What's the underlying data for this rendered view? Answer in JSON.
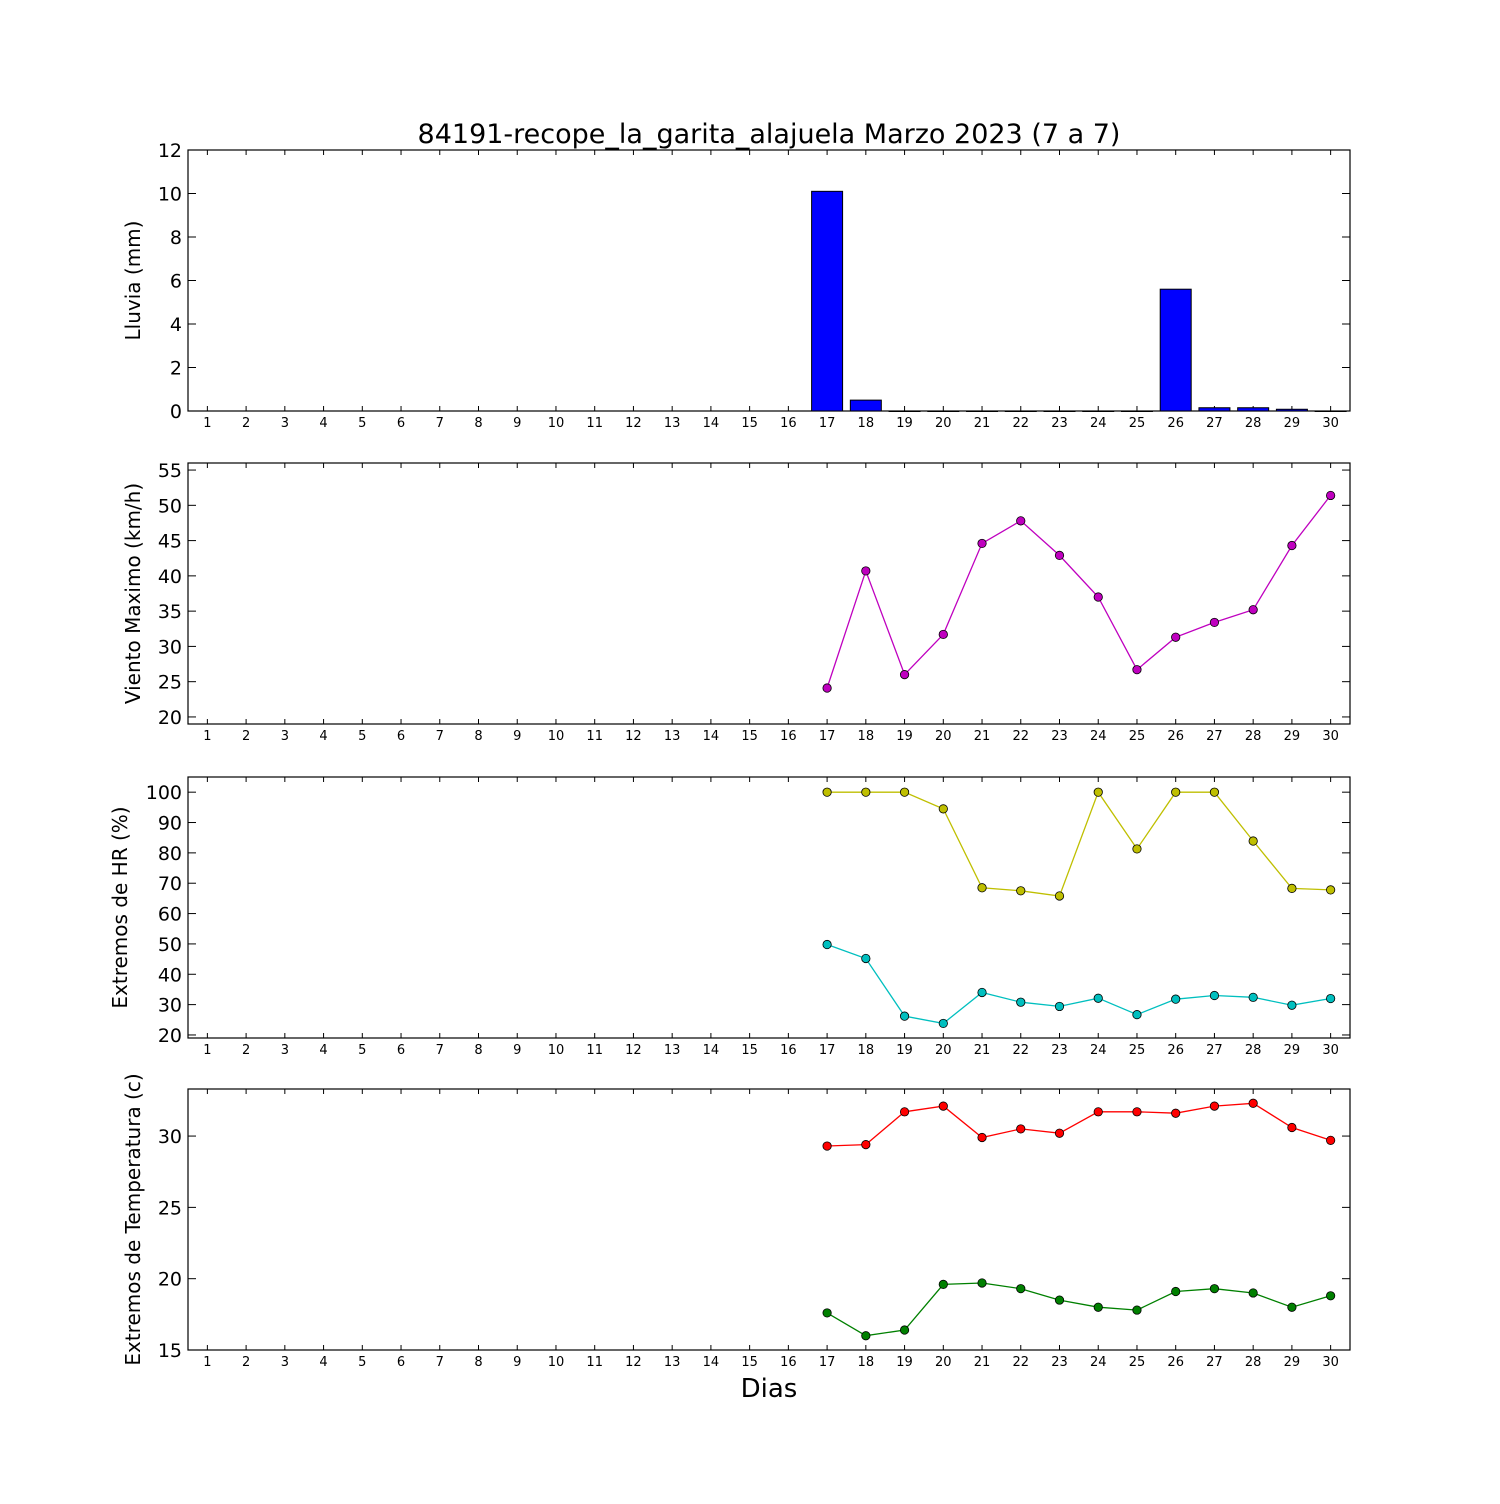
{
  "title": "84191-recope_la_garita_alajuela Marzo 2023  (7 a 7)",
  "xlabel": "Dias",
  "chart_data": [
    {
      "type": "bar",
      "ylabel": "Lluvia (mm)",
      "ylim": [
        0,
        12
      ],
      "yticks": [
        0,
        2,
        4,
        6,
        8,
        10,
        12
      ],
      "x_ticks": [
        1,
        2,
        3,
        4,
        5,
        6,
        7,
        8,
        9,
        10,
        11,
        12,
        13,
        14,
        15,
        16,
        17,
        18,
        19,
        20,
        21,
        22,
        23,
        24,
        25,
        26,
        27,
        28,
        29,
        30
      ],
      "xlim": [
        0.5,
        30.5
      ],
      "series": [
        {
          "color": "#0000ff",
          "x": [
            17,
            18,
            19,
            20,
            21,
            22,
            23,
            24,
            25,
            26,
            27,
            28,
            29,
            30
          ],
          "values": [
            10.1,
            0.5,
            0,
            0,
            0,
            0,
            0,
            0,
            0,
            5.6,
            0.15,
            0.15,
            0.08,
            0
          ]
        }
      ]
    },
    {
      "type": "line",
      "ylabel": "Viento Maximo (km/h)",
      "ylim": [
        19,
        56
      ],
      "yticks": [
        20,
        25,
        30,
        35,
        40,
        45,
        50,
        55
      ],
      "x_ticks": [
        1,
        2,
        3,
        4,
        5,
        6,
        7,
        8,
        9,
        10,
        11,
        12,
        13,
        14,
        15,
        16,
        17,
        18,
        19,
        20,
        21,
        22,
        23,
        24,
        25,
        26,
        27,
        28,
        29,
        30
      ],
      "xlim": [
        0.5,
        30.5
      ],
      "series": [
        {
          "color": "#bf00bf",
          "x": [
            17,
            18,
            19,
            20,
            21,
            22,
            23,
            24,
            25,
            26,
            27,
            28,
            29,
            30
          ],
          "values": [
            24.1,
            40.7,
            26.0,
            31.7,
            44.6,
            47.8,
            42.9,
            37.0,
            26.7,
            31.3,
            33.4,
            35.2,
            44.3,
            51.4
          ]
        }
      ]
    },
    {
      "type": "line",
      "ylabel": "Extremos de HR (%)",
      "ylim": [
        19,
        105
      ],
      "yticks": [
        20,
        30,
        40,
        50,
        60,
        70,
        80,
        90,
        100
      ],
      "x_ticks": [
        1,
        2,
        3,
        4,
        5,
        6,
        7,
        8,
        9,
        10,
        11,
        12,
        13,
        14,
        15,
        16,
        17,
        18,
        19,
        20,
        21,
        22,
        23,
        24,
        25,
        26,
        27,
        28,
        29,
        30
      ],
      "xlim": [
        0.5,
        30.5
      ],
      "series": [
        {
          "color": "#bfbf00",
          "x": [
            17,
            18,
            19,
            20,
            21,
            22,
            23,
            24,
            25,
            26,
            27,
            28,
            29,
            30
          ],
          "values": [
            100,
            100,
            100,
            94.5,
            68.5,
            67.5,
            65.8,
            100,
            81.3,
            100,
            100,
            83.9,
            68.3,
            67.8
          ]
        },
        {
          "color": "#00bfbf",
          "x": [
            17,
            18,
            19,
            20,
            21,
            22,
            23,
            24,
            25,
            26,
            27,
            28,
            29,
            30
          ],
          "values": [
            49.8,
            45.2,
            26.2,
            23.8,
            34.0,
            30.8,
            29.4,
            32.1,
            26.7,
            31.8,
            33.0,
            32.4,
            29.8,
            32.0
          ]
        }
      ]
    },
    {
      "type": "line",
      "ylabel": "Extremos de Temperatura (c)",
      "ylim": [
        15,
        33.3
      ],
      "yticks": [
        15,
        20,
        25,
        30
      ],
      "x_ticks": [
        1,
        2,
        3,
        4,
        5,
        6,
        7,
        8,
        9,
        10,
        11,
        12,
        13,
        14,
        15,
        16,
        17,
        18,
        19,
        20,
        21,
        22,
        23,
        24,
        25,
        26,
        27,
        28,
        29,
        30
      ],
      "xlim": [
        0.5,
        30.5
      ],
      "series": [
        {
          "color": "#ff0000",
          "x": [
            17,
            18,
            19,
            20,
            21,
            22,
            23,
            24,
            25,
            26,
            27,
            28,
            29,
            30
          ],
          "values": [
            29.3,
            29.4,
            31.7,
            32.1,
            29.9,
            30.5,
            30.2,
            31.7,
            31.7,
            31.6,
            32.1,
            32.3,
            30.6,
            29.7
          ]
        },
        {
          "color": "#008000",
          "x": [
            17,
            18,
            19,
            20,
            21,
            22,
            23,
            24,
            25,
            26,
            27,
            28,
            29,
            30
          ],
          "values": [
            17.6,
            16.0,
            16.4,
            19.6,
            19.7,
            19.3,
            18.5,
            18.0,
            17.8,
            19.1,
            19.3,
            19.0,
            18.0,
            18.8
          ]
        }
      ]
    }
  ]
}
